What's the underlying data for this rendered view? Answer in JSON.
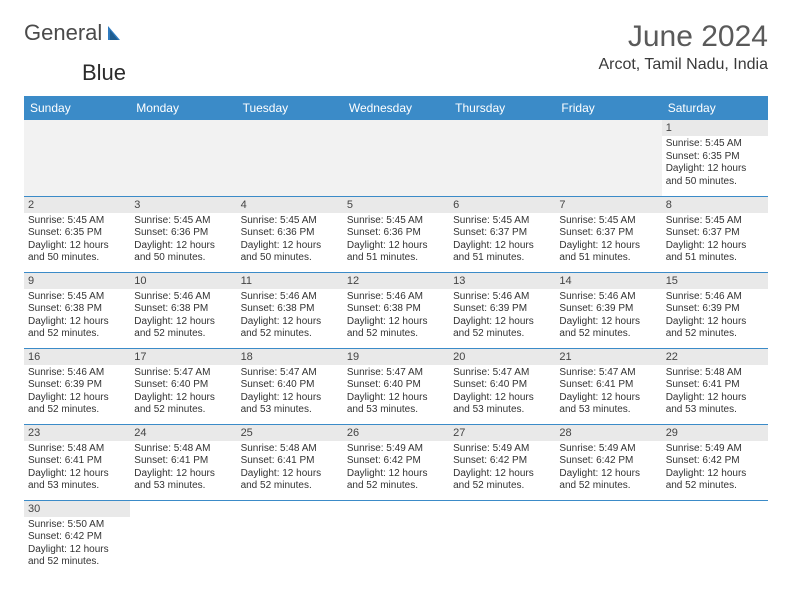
{
  "brand": {
    "name_part1": "General",
    "name_part2": "Blue"
  },
  "header": {
    "month_title": "June 2024",
    "location": "Arcot, Tamil Nadu, India"
  },
  "colors": {
    "header_bg": "#3b8bc8",
    "header_text": "#ffffff",
    "daynum_bg": "#e9e9e9",
    "row_border": "#3b8bc8",
    "empty_bg": "#f2f2f2",
    "brand_accent": "#2f7bbf"
  },
  "day_labels": [
    "Sunday",
    "Monday",
    "Tuesday",
    "Wednesday",
    "Thursday",
    "Friday",
    "Saturday"
  ],
  "weeks": [
    [
      null,
      null,
      null,
      null,
      null,
      null,
      {
        "n": "1",
        "sr": "5:45 AM",
        "ss": "6:35 PM",
        "dl": "12 hours and 50 minutes."
      }
    ],
    [
      {
        "n": "2",
        "sr": "5:45 AM",
        "ss": "6:35 PM",
        "dl": "12 hours and 50 minutes."
      },
      {
        "n": "3",
        "sr": "5:45 AM",
        "ss": "6:36 PM",
        "dl": "12 hours and 50 minutes."
      },
      {
        "n": "4",
        "sr": "5:45 AM",
        "ss": "6:36 PM",
        "dl": "12 hours and 50 minutes."
      },
      {
        "n": "5",
        "sr": "5:45 AM",
        "ss": "6:36 PM",
        "dl": "12 hours and 51 minutes."
      },
      {
        "n": "6",
        "sr": "5:45 AM",
        "ss": "6:37 PM",
        "dl": "12 hours and 51 minutes."
      },
      {
        "n": "7",
        "sr": "5:45 AM",
        "ss": "6:37 PM",
        "dl": "12 hours and 51 minutes."
      },
      {
        "n": "8",
        "sr": "5:45 AM",
        "ss": "6:37 PM",
        "dl": "12 hours and 51 minutes."
      }
    ],
    [
      {
        "n": "9",
        "sr": "5:45 AM",
        "ss": "6:38 PM",
        "dl": "12 hours and 52 minutes."
      },
      {
        "n": "10",
        "sr": "5:46 AM",
        "ss": "6:38 PM",
        "dl": "12 hours and 52 minutes."
      },
      {
        "n": "11",
        "sr": "5:46 AM",
        "ss": "6:38 PM",
        "dl": "12 hours and 52 minutes."
      },
      {
        "n": "12",
        "sr": "5:46 AM",
        "ss": "6:38 PM",
        "dl": "12 hours and 52 minutes."
      },
      {
        "n": "13",
        "sr": "5:46 AM",
        "ss": "6:39 PM",
        "dl": "12 hours and 52 minutes."
      },
      {
        "n": "14",
        "sr": "5:46 AM",
        "ss": "6:39 PM",
        "dl": "12 hours and 52 minutes."
      },
      {
        "n": "15",
        "sr": "5:46 AM",
        "ss": "6:39 PM",
        "dl": "12 hours and 52 minutes."
      }
    ],
    [
      {
        "n": "16",
        "sr": "5:46 AM",
        "ss": "6:39 PM",
        "dl": "12 hours and 52 minutes."
      },
      {
        "n": "17",
        "sr": "5:47 AM",
        "ss": "6:40 PM",
        "dl": "12 hours and 52 minutes."
      },
      {
        "n": "18",
        "sr": "5:47 AM",
        "ss": "6:40 PM",
        "dl": "12 hours and 53 minutes."
      },
      {
        "n": "19",
        "sr": "5:47 AM",
        "ss": "6:40 PM",
        "dl": "12 hours and 53 minutes."
      },
      {
        "n": "20",
        "sr": "5:47 AM",
        "ss": "6:40 PM",
        "dl": "12 hours and 53 minutes."
      },
      {
        "n": "21",
        "sr": "5:47 AM",
        "ss": "6:41 PM",
        "dl": "12 hours and 53 minutes."
      },
      {
        "n": "22",
        "sr": "5:48 AM",
        "ss": "6:41 PM",
        "dl": "12 hours and 53 minutes."
      }
    ],
    [
      {
        "n": "23",
        "sr": "5:48 AM",
        "ss": "6:41 PM",
        "dl": "12 hours and 53 minutes."
      },
      {
        "n": "24",
        "sr": "5:48 AM",
        "ss": "6:41 PM",
        "dl": "12 hours and 53 minutes."
      },
      {
        "n": "25",
        "sr": "5:48 AM",
        "ss": "6:41 PM",
        "dl": "12 hours and 52 minutes."
      },
      {
        "n": "26",
        "sr": "5:49 AM",
        "ss": "6:42 PM",
        "dl": "12 hours and 52 minutes."
      },
      {
        "n": "27",
        "sr": "5:49 AM",
        "ss": "6:42 PM",
        "dl": "12 hours and 52 minutes."
      },
      {
        "n": "28",
        "sr": "5:49 AM",
        "ss": "6:42 PM",
        "dl": "12 hours and 52 minutes."
      },
      {
        "n": "29",
        "sr": "5:49 AM",
        "ss": "6:42 PM",
        "dl": "12 hours and 52 minutes."
      }
    ],
    [
      {
        "n": "30",
        "sr": "5:50 AM",
        "ss": "6:42 PM",
        "dl": "12 hours and 52 minutes."
      },
      null,
      null,
      null,
      null,
      null,
      null
    ]
  ],
  "labels": {
    "sunrise": "Sunrise:",
    "sunset": "Sunset:",
    "daylight": "Daylight:"
  }
}
